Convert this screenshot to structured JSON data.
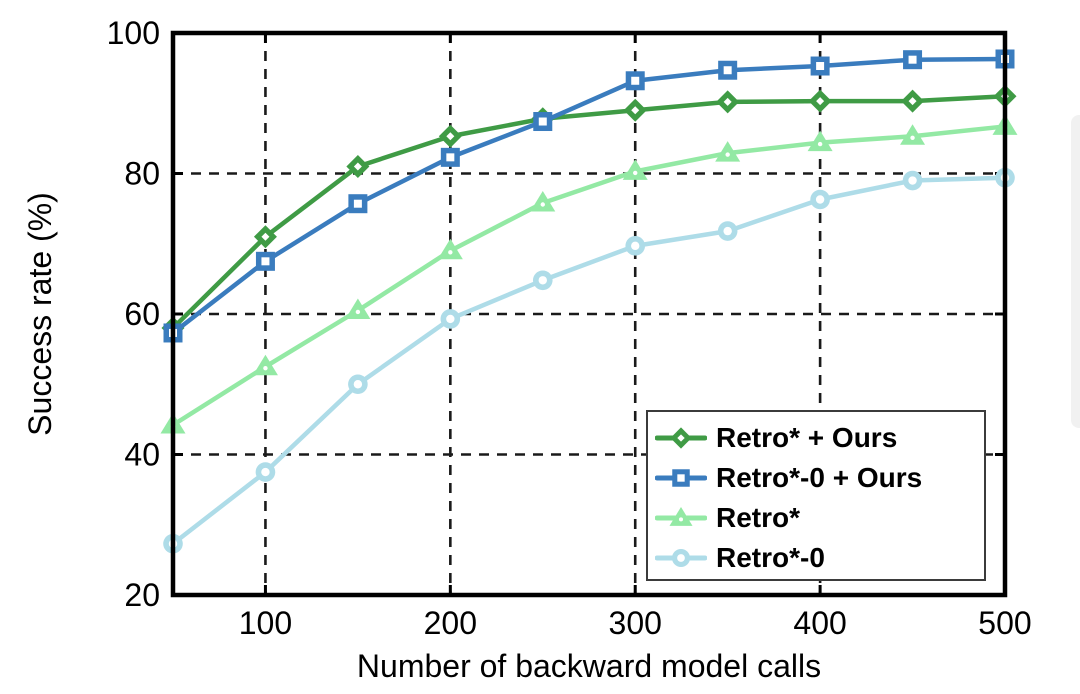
{
  "chart_data": {
    "type": "line",
    "title": "",
    "xlabel": "Number of backward model calls",
    "ylabel": "Success rate (%)",
    "xlim": [
      50,
      500
    ],
    "ylim": [
      20,
      100
    ],
    "xticks": [
      100,
      200,
      300,
      400,
      500
    ],
    "yticks": [
      20,
      40,
      60,
      80,
      100
    ],
    "grid": "dashed black, vertical at xticks 100-400, horizontal at yticks 40-80",
    "legend_position": "lower right",
    "x": [
      50,
      100,
      150,
      200,
      250,
      300,
      350,
      400,
      450,
      500
    ],
    "series": [
      {
        "name": "Retro* + Ours",
        "marker": "diamond",
        "color": "#3f9b45",
        "values": [
          58,
          71,
          81,
          85.3,
          87.8,
          89,
          90.2,
          90.3,
          90.3,
          91
        ]
      },
      {
        "name": "Retro*-0 + Ours",
        "marker": "square",
        "color": "#3a7cbe",
        "values": [
          57.3,
          67.5,
          75.7,
          82.3,
          87.4,
          93.2,
          94.7,
          95.3,
          96.2,
          96.3
        ]
      },
      {
        "name": "Retro*",
        "marker": "triangle",
        "color": "#93e9a4",
        "values": [
          44.2,
          52.5,
          60.5,
          69,
          75.8,
          80.3,
          82.9,
          84.4,
          85.3,
          86.7
        ]
      },
      {
        "name": "Retro*-0",
        "marker": "circle",
        "color": "#aedce8",
        "values": [
          27.3,
          37.5,
          50,
          59.3,
          64.8,
          69.7,
          71.8,
          76.3,
          79,
          79.4
        ]
      }
    ],
    "style": {
      "background": "#ffffff",
      "spine_color": "#000000",
      "grid_color": "#1a1a1a",
      "tick_label_color": "#000000",
      "line_width": 4.5
    }
  }
}
